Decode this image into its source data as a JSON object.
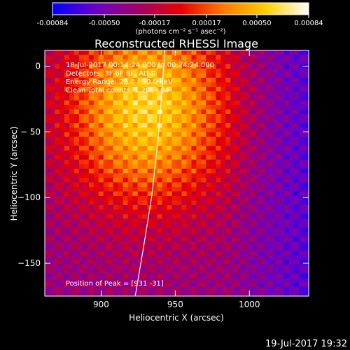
{
  "colorbar": {
    "tick_labels": [
      "-0.00084",
      "-0.00050",
      "-0.00017",
      "0.00017",
      "0.00050",
      "0.00084"
    ],
    "tick_values": [
      -0.00084,
      -0.0005,
      -0.00017,
      0.00017,
      0.0005,
      0.00084
    ],
    "range": [
      -0.00084,
      0.00084
    ],
    "units_label": "(photons cm⁻² s⁻¹ asec⁻²)",
    "colors": [
      "#0000ff",
      "#6a00c8",
      "#a0006a",
      "#e80000",
      "#ff7a00",
      "#ffd000",
      "#ffffff"
    ]
  },
  "chart_data": {
    "type": "heatmap",
    "title": "Reconstructed RHESSI Image",
    "xlabel": "Heliocentric X (arcsec)",
    "ylabel": "Heliocentric Y (arcsec)",
    "xlim": [
      862,
      1040
    ],
    "ylim": [
      -175,
      12
    ],
    "x_ticks": [
      900,
      950,
      1000
    ],
    "y_ticks": [
      0,
      -50,
      -100,
      -150
    ],
    "x_tick_labels": [
      "900",
      "950",
      "1000"
    ],
    "y_tick_labels": [
      "0",
      "− 50",
      "−100",
      "−150"
    ],
    "annotations": [
      "18-Jul-2017 00:14:24.000 to 00:24:24.000",
      "Detectors: 3F 6F 8F, Att 0",
      "Energy Range: 25.0 - 50.0 keV",
      "Clean       Total counts: 1.20E+04"
    ],
    "peak_label": "Position of Peak = [931 -31]",
    "peak": [
      931,
      -31
    ],
    "limb_line": [
      [
        923,
        -175
      ],
      [
        929,
        -135
      ],
      [
        934,
        -100
      ],
      [
        938,
        -60
      ],
      [
        941,
        -20
      ],
      [
        943,
        12
      ]
    ]
  },
  "footer": {
    "timestamp": "19-Jul-2017 19:32"
  }
}
